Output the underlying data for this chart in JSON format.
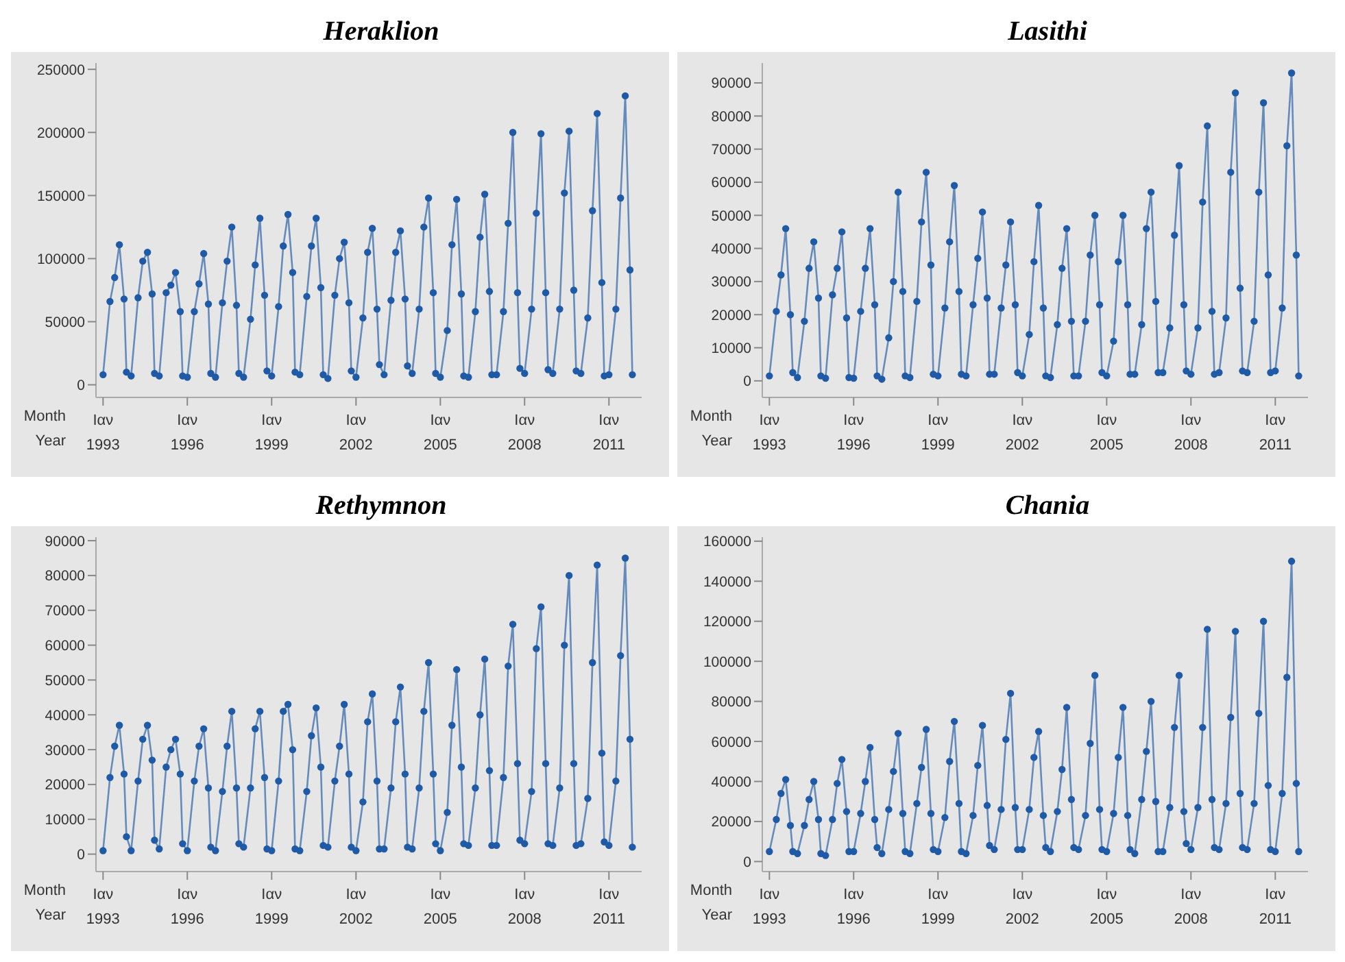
{
  "chart_data": [
    {
      "type": "line",
      "title": "Heraklion",
      "annotations": [
        "Month",
        "Year"
      ],
      "marker": "circle",
      "line_style": "solid",
      "x": [
        "1993-01",
        "1993-04",
        "1993-06",
        "1993-08",
        "1993-10",
        "1993-11",
        "1994-01",
        "1994-04",
        "1994-06",
        "1994-08",
        "1994-10",
        "1994-11",
        "1995-01",
        "1995-04",
        "1995-06",
        "1995-08",
        "1995-10",
        "1995-11",
        "1996-01",
        "1996-04",
        "1996-06",
        "1996-08",
        "1996-10",
        "1996-11",
        "1997-01",
        "1997-04",
        "1997-06",
        "1997-08",
        "1997-10",
        "1997-11",
        "1998-01",
        "1998-04",
        "1998-06",
        "1998-08",
        "1998-10",
        "1998-11",
        "1999-01",
        "1999-04",
        "1999-06",
        "1999-08",
        "1999-10",
        "1999-11",
        "2000-01",
        "2000-04",
        "2000-06",
        "2000-08",
        "2000-10",
        "2000-11",
        "2001-01",
        "2001-04",
        "2001-06",
        "2001-08",
        "2001-10",
        "2001-11",
        "2002-01",
        "2002-04",
        "2002-06",
        "2002-08",
        "2002-10",
        "2002-11",
        "2003-01",
        "2003-04",
        "2003-06",
        "2003-08",
        "2003-10",
        "2003-11",
        "2004-01",
        "2004-04",
        "2004-06",
        "2004-08",
        "2004-10",
        "2004-11",
        "2005-01",
        "2005-04",
        "2005-06",
        "2005-08",
        "2005-10",
        "2005-11",
        "2006-01",
        "2006-04",
        "2006-06",
        "2006-08",
        "2006-10",
        "2006-11",
        "2007-01",
        "2007-04",
        "2007-06",
        "2007-08",
        "2007-10",
        "2007-11",
        "2008-01",
        "2008-04",
        "2008-06",
        "2008-08",
        "2008-10",
        "2008-11",
        "2009-01",
        "2009-04",
        "2009-06",
        "2009-08",
        "2009-10",
        "2009-11",
        "2010-01",
        "2010-04",
        "2010-06",
        "2010-08",
        "2010-10",
        "2010-11",
        "2011-01",
        "2011-04",
        "2011-06",
        "2011-08",
        "2011-10",
        "2011-11"
      ],
      "xlim": [
        "1992-10",
        "2012-03"
      ],
      "xticks": [
        {
          "value": "1993-01",
          "label": "Ιαν\n1993"
        },
        {
          "value": "1996-01",
          "label": "Ιαν\n1996"
        },
        {
          "value": "1999-01",
          "label": "Ιαν\n1999"
        },
        {
          "value": "2002-01",
          "label": "Ιαν\n2002"
        },
        {
          "value": "2005-01",
          "label": "Ιαν\n2005"
        },
        {
          "value": "2008-01",
          "label": "Ιαν\n2008"
        },
        {
          "value": "2011-01",
          "label": "Ιαν\n2011"
        }
      ],
      "ylim": [
        -10000,
        255000
      ],
      "yticks": [
        0,
        50000,
        100000,
        150000,
        200000,
        250000
      ],
      "series": [
        {
          "color": "#1f5aa6",
          "values": [
            8000,
            66000,
            85000,
            111000,
            68000,
            10000,
            7000,
            69000,
            98000,
            105000,
            72000,
            9000,
            7000,
            73000,
            79000,
            89000,
            58000,
            7000,
            6000,
            58000,
            80000,
            104000,
            64000,
            9000,
            6000,
            65000,
            98000,
            125000,
            63000,
            9000,
            6000,
            52000,
            95000,
            132000,
            71000,
            11000,
            7000,
            62000,
            110000,
            135000,
            89000,
            10000,
            8000,
            70000,
            110000,
            132000,
            77000,
            8000,
            5000,
            71000,
            100000,
            113000,
            65000,
            11000,
            6000,
            53000,
            105000,
            124000,
            60000,
            16000,
            8000,
            67000,
            105000,
            122000,
            68000,
            15000,
            9000,
            60000,
            125000,
            148000,
            73000,
            9000,
            6000,
            43000,
            111000,
            147000,
            72000,
            7000,
            6000,
            58000,
            117000,
            151000,
            74000,
            8000,
            8000,
            58000,
            128000,
            200000,
            73000,
            13000,
            9000,
            60000,
            136000,
            199000,
            73000,
            12000,
            9000,
            60000,
            152000,
            201000,
            75000,
            11000,
            9000,
            53000,
            138000,
            215000,
            81000,
            7000,
            8000,
            60000,
            148000,
            229000,
            91000,
            8000
          ]
        }
      ]
    },
    {
      "type": "line",
      "title": "Lasithi",
      "annotations": [
        "Month",
        "Year"
      ],
      "marker": "circle",
      "line_style": "solid",
      "x": [
        "1993-01",
        "1993-04",
        "1993-06",
        "1993-08",
        "1993-10",
        "1993-11",
        "1994-01",
        "1994-04",
        "1994-06",
        "1994-08",
        "1994-10",
        "1994-11",
        "1995-01",
        "1995-04",
        "1995-06",
        "1995-08",
        "1995-10",
        "1995-11",
        "1996-01",
        "1996-04",
        "1996-06",
        "1996-08",
        "1996-10",
        "1996-11",
        "1997-01",
        "1997-04",
        "1997-06",
        "1997-08",
        "1997-10",
        "1997-11",
        "1998-01",
        "1998-04",
        "1998-06",
        "1998-08",
        "1998-10",
        "1998-11",
        "1999-01",
        "1999-04",
        "1999-06",
        "1999-08",
        "1999-10",
        "1999-11",
        "2000-01",
        "2000-04",
        "2000-06",
        "2000-08",
        "2000-10",
        "2000-11",
        "2001-01",
        "2001-04",
        "2001-06",
        "2001-08",
        "2001-10",
        "2001-11",
        "2002-01",
        "2002-04",
        "2002-06",
        "2002-08",
        "2002-10",
        "2002-11",
        "2003-01",
        "2003-04",
        "2003-06",
        "2003-08",
        "2003-10",
        "2003-11",
        "2004-01",
        "2004-04",
        "2004-06",
        "2004-08",
        "2004-10",
        "2004-11",
        "2005-01",
        "2005-04",
        "2005-06",
        "2005-08",
        "2005-10",
        "2005-11",
        "2006-01",
        "2006-04",
        "2006-06",
        "2006-08",
        "2006-10",
        "2006-11",
        "2007-01",
        "2007-04",
        "2007-06",
        "2007-08",
        "2007-10",
        "2007-11",
        "2008-01",
        "2008-04",
        "2008-06",
        "2008-08",
        "2008-10",
        "2008-11",
        "2009-01",
        "2009-04",
        "2009-06",
        "2009-08",
        "2009-10",
        "2009-11",
        "2010-01",
        "2010-04",
        "2010-06",
        "2010-08",
        "2010-10",
        "2010-11",
        "2011-01",
        "2011-04",
        "2011-06",
        "2011-08",
        "2011-10",
        "2011-11"
      ],
      "xlim": [
        "1992-10",
        "2012-03"
      ],
      "xticks": [
        {
          "value": "1993-01",
          "label": "Ιαν\n1993"
        },
        {
          "value": "1996-01",
          "label": "Ιαν\n1996"
        },
        {
          "value": "1999-01",
          "label": "Ιαν\n1999"
        },
        {
          "value": "2002-01",
          "label": "Ιαν\n2002"
        },
        {
          "value": "2005-01",
          "label": "Ιαν\n2005"
        },
        {
          "value": "2008-01",
          "label": "Ιαν\n2008"
        },
        {
          "value": "2011-01",
          "label": "Ιαν\n2011"
        }
      ],
      "ylim": [
        -5000,
        96000
      ],
      "yticks": [
        0,
        10000,
        20000,
        30000,
        40000,
        50000,
        60000,
        70000,
        80000,
        90000
      ],
      "series": [
        {
          "color": "#1f5aa6",
          "values": [
            1500,
            21000,
            32000,
            46000,
            20000,
            2500,
            1000,
            18000,
            34000,
            42000,
            25000,
            1500,
            800,
            26000,
            34000,
            45000,
            19000,
            1000,
            800,
            21000,
            34000,
            46000,
            23000,
            1500,
            500,
            13000,
            30000,
            57000,
            27000,
            1500,
            1000,
            24000,
            48000,
            63000,
            35000,
            2000,
            1500,
            22000,
            42000,
            59000,
            27000,
            2000,
            1500,
            23000,
            37000,
            51000,
            25000,
            2000,
            2000,
            22000,
            35000,
            48000,
            23000,
            2500,
            1500,
            14000,
            36000,
            53000,
            22000,
            1500,
            1000,
            17000,
            34000,
            46000,
            18000,
            1500,
            1500,
            18000,
            38000,
            50000,
            23000,
            2500,
            1500,
            12000,
            36000,
            50000,
            23000,
            2000,
            2000,
            17000,
            46000,
            57000,
            24000,
            2500,
            2500,
            16000,
            44000,
            65000,
            23000,
            3000,
            2000,
            16000,
            54000,
            77000,
            21000,
            2000,
            2500,
            19000,
            63000,
            87000,
            28000,
            3000,
            2500,
            18000,
            57000,
            84000,
            32000,
            2500,
            3000,
            22000,
            71000,
            93000,
            38000,
            1500
          ]
        }
      ]
    },
    {
      "type": "line",
      "title": "Rethymnon",
      "annotations": [
        "Month",
        "Year"
      ],
      "marker": "circle",
      "line_style": "solid",
      "x": [
        "1993-01",
        "1993-04",
        "1993-06",
        "1993-08",
        "1993-10",
        "1993-11",
        "1994-01",
        "1994-04",
        "1994-06",
        "1994-08",
        "1994-10",
        "1994-11",
        "1995-01",
        "1995-04",
        "1995-06",
        "1995-08",
        "1995-10",
        "1995-11",
        "1996-01",
        "1996-04",
        "1996-06",
        "1996-08",
        "1996-10",
        "1996-11",
        "1997-01",
        "1997-04",
        "1997-06",
        "1997-08",
        "1997-10",
        "1997-11",
        "1998-01",
        "1998-04",
        "1998-06",
        "1998-08",
        "1998-10",
        "1998-11",
        "1999-01",
        "1999-04",
        "1999-06",
        "1999-08",
        "1999-10",
        "1999-11",
        "2000-01",
        "2000-04",
        "2000-06",
        "2000-08",
        "2000-10",
        "2000-11",
        "2001-01",
        "2001-04",
        "2001-06",
        "2001-08",
        "2001-10",
        "2001-11",
        "2002-01",
        "2002-04",
        "2002-06",
        "2002-08",
        "2002-10",
        "2002-11",
        "2003-01",
        "2003-04",
        "2003-06",
        "2003-08",
        "2003-10",
        "2003-11",
        "2004-01",
        "2004-04",
        "2004-06",
        "2004-08",
        "2004-10",
        "2004-11",
        "2005-01",
        "2005-04",
        "2005-06",
        "2005-08",
        "2005-10",
        "2005-11",
        "2006-01",
        "2006-04",
        "2006-06",
        "2006-08",
        "2006-10",
        "2006-11",
        "2007-01",
        "2007-04",
        "2007-06",
        "2007-08",
        "2007-10",
        "2007-11",
        "2008-01",
        "2008-04",
        "2008-06",
        "2008-08",
        "2008-10",
        "2008-11",
        "2009-01",
        "2009-04",
        "2009-06",
        "2009-08",
        "2009-10",
        "2009-11",
        "2010-01",
        "2010-04",
        "2010-06",
        "2010-08",
        "2010-10",
        "2010-11",
        "2011-01",
        "2011-04",
        "2011-06",
        "2011-08",
        "2011-10",
        "2011-11"
      ],
      "xlim": [
        "1992-10",
        "2012-03"
      ],
      "xticks": [
        {
          "value": "1993-01",
          "label": "Ιαν\n1993"
        },
        {
          "value": "1996-01",
          "label": "Ιαν\n1996"
        },
        {
          "value": "1999-01",
          "label": "Ιαν\n1999"
        },
        {
          "value": "2002-01",
          "label": "Ιαν\n2002"
        },
        {
          "value": "2005-01",
          "label": "Ιαν\n2005"
        },
        {
          "value": "2008-01",
          "label": "Ιαν\n2008"
        },
        {
          "value": "2011-01",
          "label": "Ιαν\n2011"
        }
      ],
      "ylim": [
        -5000,
        91000
      ],
      "yticks": [
        0,
        10000,
        20000,
        30000,
        40000,
        50000,
        60000,
        70000,
        80000,
        90000
      ],
      "series": [
        {
          "color": "#1f5aa6",
          "values": [
            1000,
            22000,
            31000,
            37000,
            23000,
            5000,
            1000,
            21000,
            33000,
            37000,
            27000,
            4000,
            1500,
            25000,
            30000,
            33000,
            23000,
            3000,
            1000,
            21000,
            31000,
            36000,
            19000,
            2000,
            1000,
            18000,
            31000,
            41000,
            19000,
            3000,
            2000,
            19000,
            36000,
            41000,
            22000,
            1500,
            1000,
            21000,
            41000,
            43000,
            30000,
            1500,
            1000,
            18000,
            34000,
            42000,
            25000,
            2500,
            2000,
            21000,
            31000,
            43000,
            23000,
            2000,
            1000,
            15000,
            38000,
            46000,
            21000,
            1500,
            1500,
            19000,
            38000,
            48000,
            23000,
            2000,
            1500,
            19000,
            41000,
            55000,
            23000,
            3000,
            1000,
            12000,
            37000,
            53000,
            25000,
            3000,
            2500,
            19000,
            40000,
            56000,
            24000,
            2500,
            2500,
            22000,
            54000,
            66000,
            26000,
            4000,
            3000,
            18000,
            59000,
            71000,
            26000,
            3000,
            2500,
            19000,
            60000,
            80000,
            26000,
            2500,
            3000,
            16000,
            55000,
            83000,
            29000,
            3500,
            2500,
            21000,
            57000,
            85000,
            33000,
            2000
          ]
        }
      ]
    },
    {
      "type": "line",
      "title": "Chania",
      "annotations": [
        "Month",
        "Year"
      ],
      "marker": "circle",
      "line_style": "solid",
      "x": [
        "1993-01",
        "1993-04",
        "1993-06",
        "1993-08",
        "1993-10",
        "1993-11",
        "1994-01",
        "1994-04",
        "1994-06",
        "1994-08",
        "1994-10",
        "1994-11",
        "1995-01",
        "1995-04",
        "1995-06",
        "1995-08",
        "1995-10",
        "1995-11",
        "1996-01",
        "1996-04",
        "1996-06",
        "1996-08",
        "1996-10",
        "1996-11",
        "1997-01",
        "1997-04",
        "1997-06",
        "1997-08",
        "1997-10",
        "1997-11",
        "1998-01",
        "1998-04",
        "1998-06",
        "1998-08",
        "1998-10",
        "1998-11",
        "1999-01",
        "1999-04",
        "1999-06",
        "1999-08",
        "1999-10",
        "1999-11",
        "2000-01",
        "2000-04",
        "2000-06",
        "2000-08",
        "2000-10",
        "2000-11",
        "2001-01",
        "2001-04",
        "2001-06",
        "2001-08",
        "2001-10",
        "2001-11",
        "2002-01",
        "2002-04",
        "2002-06",
        "2002-08",
        "2002-10",
        "2002-11",
        "2003-01",
        "2003-04",
        "2003-06",
        "2003-08",
        "2003-10",
        "2003-11",
        "2004-01",
        "2004-04",
        "2004-06",
        "2004-08",
        "2004-10",
        "2004-11",
        "2005-01",
        "2005-04",
        "2005-06",
        "2005-08",
        "2005-10",
        "2005-11",
        "2006-01",
        "2006-04",
        "2006-06",
        "2006-08",
        "2006-10",
        "2006-11",
        "2007-01",
        "2007-04",
        "2007-06",
        "2007-08",
        "2007-10",
        "2007-11",
        "2008-01",
        "2008-04",
        "2008-06",
        "2008-08",
        "2008-10",
        "2008-11",
        "2009-01",
        "2009-04",
        "2009-06",
        "2009-08",
        "2009-10",
        "2009-11",
        "2010-01",
        "2010-04",
        "2010-06",
        "2010-08",
        "2010-10",
        "2010-11",
        "2011-01",
        "2011-04",
        "2011-06",
        "2011-08",
        "2011-10",
        "2011-11"
      ],
      "xlim": [
        "1992-10",
        "2012-03"
      ],
      "xticks": [
        {
          "value": "1993-01",
          "label": "Ιαν\n1993"
        },
        {
          "value": "1996-01",
          "label": "Ιαν\n1996"
        },
        {
          "value": "1999-01",
          "label": "Ιαν\n1999"
        },
        {
          "value": "2002-01",
          "label": "Ιαν\n2002"
        },
        {
          "value": "2005-01",
          "label": "Ιαν\n2005"
        },
        {
          "value": "2008-01",
          "label": "Ιαν\n2008"
        },
        {
          "value": "2011-01",
          "label": "Ιαν\n2011"
        }
      ],
      "ylim": [
        -5000,
        162000
      ],
      "yticks": [
        0,
        20000,
        40000,
        60000,
        80000,
        100000,
        120000,
        140000,
        160000
      ],
      "series": [
        {
          "color": "#1f5aa6",
          "values": [
            5000,
            21000,
            34000,
            41000,
            18000,
            5000,
            4000,
            18000,
            31000,
            40000,
            21000,
            4000,
            3000,
            21000,
            39000,
            51000,
            25000,
            5000,
            5000,
            24000,
            40000,
            57000,
            21000,
            7000,
            4000,
            26000,
            45000,
            64000,
            24000,
            5000,
            4000,
            29000,
            47000,
            66000,
            24000,
            6000,
            5000,
            22000,
            50000,
            70000,
            29000,
            5000,
            4000,
            23000,
            48000,
            68000,
            28000,
            8000,
            6000,
            26000,
            61000,
            84000,
            27000,
            6000,
            6000,
            26000,
            52000,
            65000,
            23000,
            7000,
            5000,
            25000,
            46000,
            77000,
            31000,
            7000,
            6000,
            23000,
            59000,
            93000,
            26000,
            6000,
            5000,
            24000,
            52000,
            77000,
            23000,
            6000,
            4000,
            31000,
            55000,
            80000,
            30000,
            5000,
            5000,
            27000,
            67000,
            93000,
            25000,
            9000,
            6000,
            27000,
            67000,
            116000,
            31000,
            7000,
            6000,
            29000,
            72000,
            115000,
            34000,
            7000,
            6000,
            29000,
            74000,
            120000,
            38000,
            6000,
            5000,
            34000,
            92000,
            150000,
            39000,
            5000
          ]
        }
      ]
    }
  ]
}
